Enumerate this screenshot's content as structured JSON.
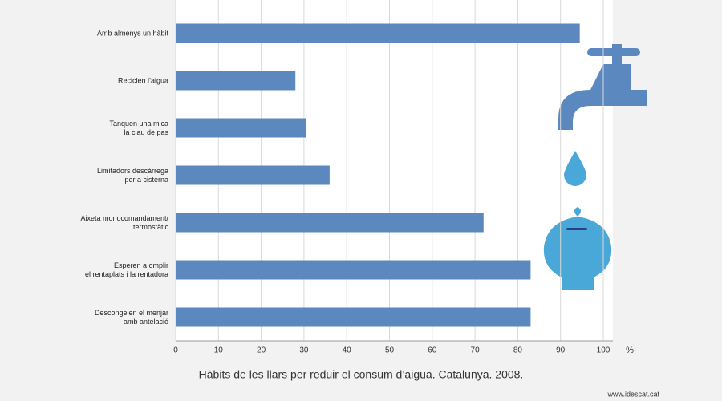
{
  "chart_data": {
    "type": "barh",
    "title": "Hàbits de les llars  per reduir el consum d’aigua. Catalunya. 2008.",
    "x_label": "%",
    "source": "www.idescat.cat",
    "categories": [
      "Amb almenys un hàbit",
      "Reciclen l’aigua",
      "Tanquen una mica\nla clau de pas",
      "Limitadors descàrrega\nper a cisterna",
      "Aixeta monocomandament/\ntermostàtic",
      "Esperen a omplir\nel rentaplats i la rentadora",
      "Descongelen el menjar\namb antelació"
    ],
    "values": [
      94.5,
      28,
      30.5,
      36,
      72,
      83,
      83
    ],
    "color": "#5b88bf",
    "xlim": [
      0,
      100
    ],
    "xticks": [
      0,
      10,
      20,
      30,
      40,
      50,
      60,
      70,
      80,
      90,
      100
    ],
    "grid": true
  }
}
